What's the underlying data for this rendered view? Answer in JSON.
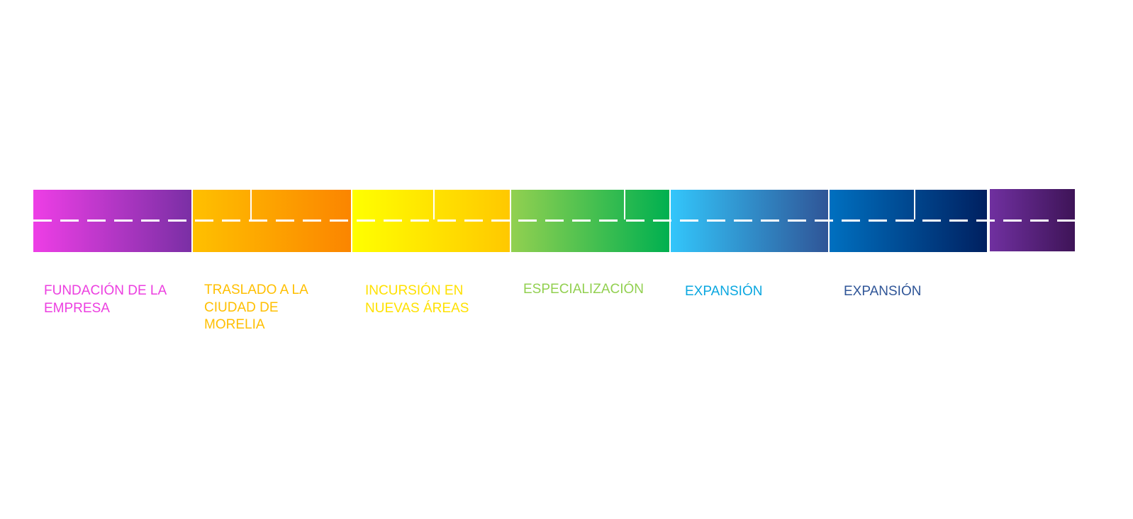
{
  "stages": [
    {
      "label": "FUNDACIÓN DE LA\nEMPRESA",
      "label_color": "#ec3fe0",
      "gradient": [
        "#ee3ee6",
        "#7a2fa5"
      ]
    },
    {
      "label": "TRASLADO A LA\nCIUDAD DE\nMORELIA",
      "label_color": "#ffbf00",
      "gradient": [
        "#ffc000",
        "#fb8500"
      ]
    },
    {
      "label": "INCURSIÓN EN\nNUEVAS ÁREAS",
      "label_color": "#ffe100",
      "gradient": [
        "#ffff00",
        "#ffc800"
      ]
    },
    {
      "label": "ESPECIALIZACIÓN",
      "label_color": "#92d050",
      "gradient": [
        "#92d050",
        "#00b050"
      ]
    },
    {
      "label": "EXPANSIÓN",
      "label_color": "#0aa7e0",
      "gradient": [
        "#33c6fb",
        "#2f5597"
      ]
    },
    {
      "label": "EXPANSIÓN",
      "label_color": "#2f5597",
      "gradient": [
        "#0070c0",
        "#002060"
      ]
    },
    {
      "label": "",
      "label_color": "#7030a0",
      "gradient": [
        "#7030a0",
        "#3e1457"
      ]
    }
  ]
}
